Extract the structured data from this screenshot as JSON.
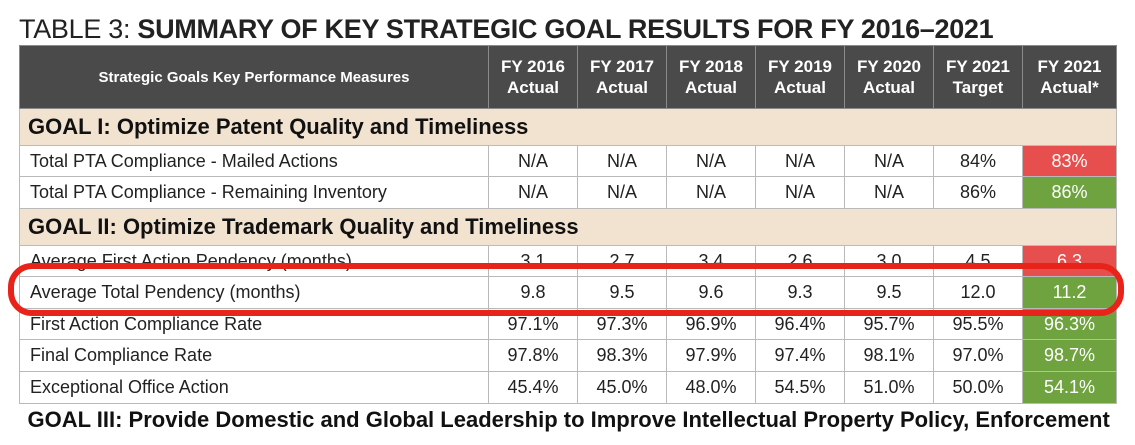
{
  "title": {
    "prefix": "TABLE 3: ",
    "main": "SUMMARY OF KEY STRATEGIC GOAL RESULTS FOR FY 2016–2021"
  },
  "headers": [
    "Strategic Goals Key Performance Measures",
    "FY 2016 Actual",
    "FY 2017 Actual",
    "FY 2018 Actual",
    "FY 2019 Actual",
    "FY 2020 Actual",
    "FY 2021 Target",
    "FY 2021 Actual*"
  ],
  "goal1": {
    "bold": "GOAL I:",
    "text": " Optimize Patent Quality and Timeliness",
    "rows": [
      {
        "label": "Total PTA Compliance - Mailed Actions",
        "values": [
          "N/A",
          "N/A",
          "N/A",
          "N/A",
          "N/A",
          "84%",
          "83%"
        ],
        "status": "red"
      },
      {
        "label": "Total PTA Compliance - Remaining Inventory",
        "values": [
          "N/A",
          "N/A",
          "N/A",
          "N/A",
          "N/A",
          "86%",
          "86%"
        ],
        "status": "green"
      }
    ]
  },
  "goal2": {
    "bold": "GOAL II:",
    "text": " Optimize Trademark Quality and Timeliness",
    "rows": [
      {
        "label": "Average First Action Pendency (months)",
        "values": [
          "3.1",
          "2.7",
          "3.4",
          "2.6",
          "3.0",
          "4.5",
          "6.3"
        ],
        "status": "red"
      },
      {
        "label": "Average Total Pendency (months)",
        "values": [
          "9.8",
          "9.5",
          "9.6",
          "9.3",
          "9.5",
          "12.0",
          "11.2"
        ],
        "status": "green"
      },
      {
        "label": "First Action Compliance Rate",
        "values": [
          "97.1%",
          "97.3%",
          "96.9%",
          "96.4%",
          "95.7%",
          "95.5%",
          "96.3%"
        ],
        "status": "green"
      },
      {
        "label": "Final Compliance Rate",
        "values": [
          "97.8%",
          "98.3%",
          "97.9%",
          "97.4%",
          "98.1%",
          "97.0%",
          "98.7%"
        ],
        "status": "green"
      },
      {
        "label": "Exceptional Office Action",
        "values": [
          "45.4%",
          "45.0%",
          "48.0%",
          "54.5%",
          "51.0%",
          "50.0%",
          "54.1%"
        ],
        "status": "green"
      }
    ]
  },
  "goal3_partial": "GOAL III: Provide Domestic and Global Leadership to Improve Intellectual Property Policy, Enforcement",
  "colors": {
    "header": "#4a4a4a",
    "goal_band": "#f1e3d0",
    "red": "#e74f4f",
    "green": "#6fa33f",
    "highlight": "#e8241a"
  }
}
